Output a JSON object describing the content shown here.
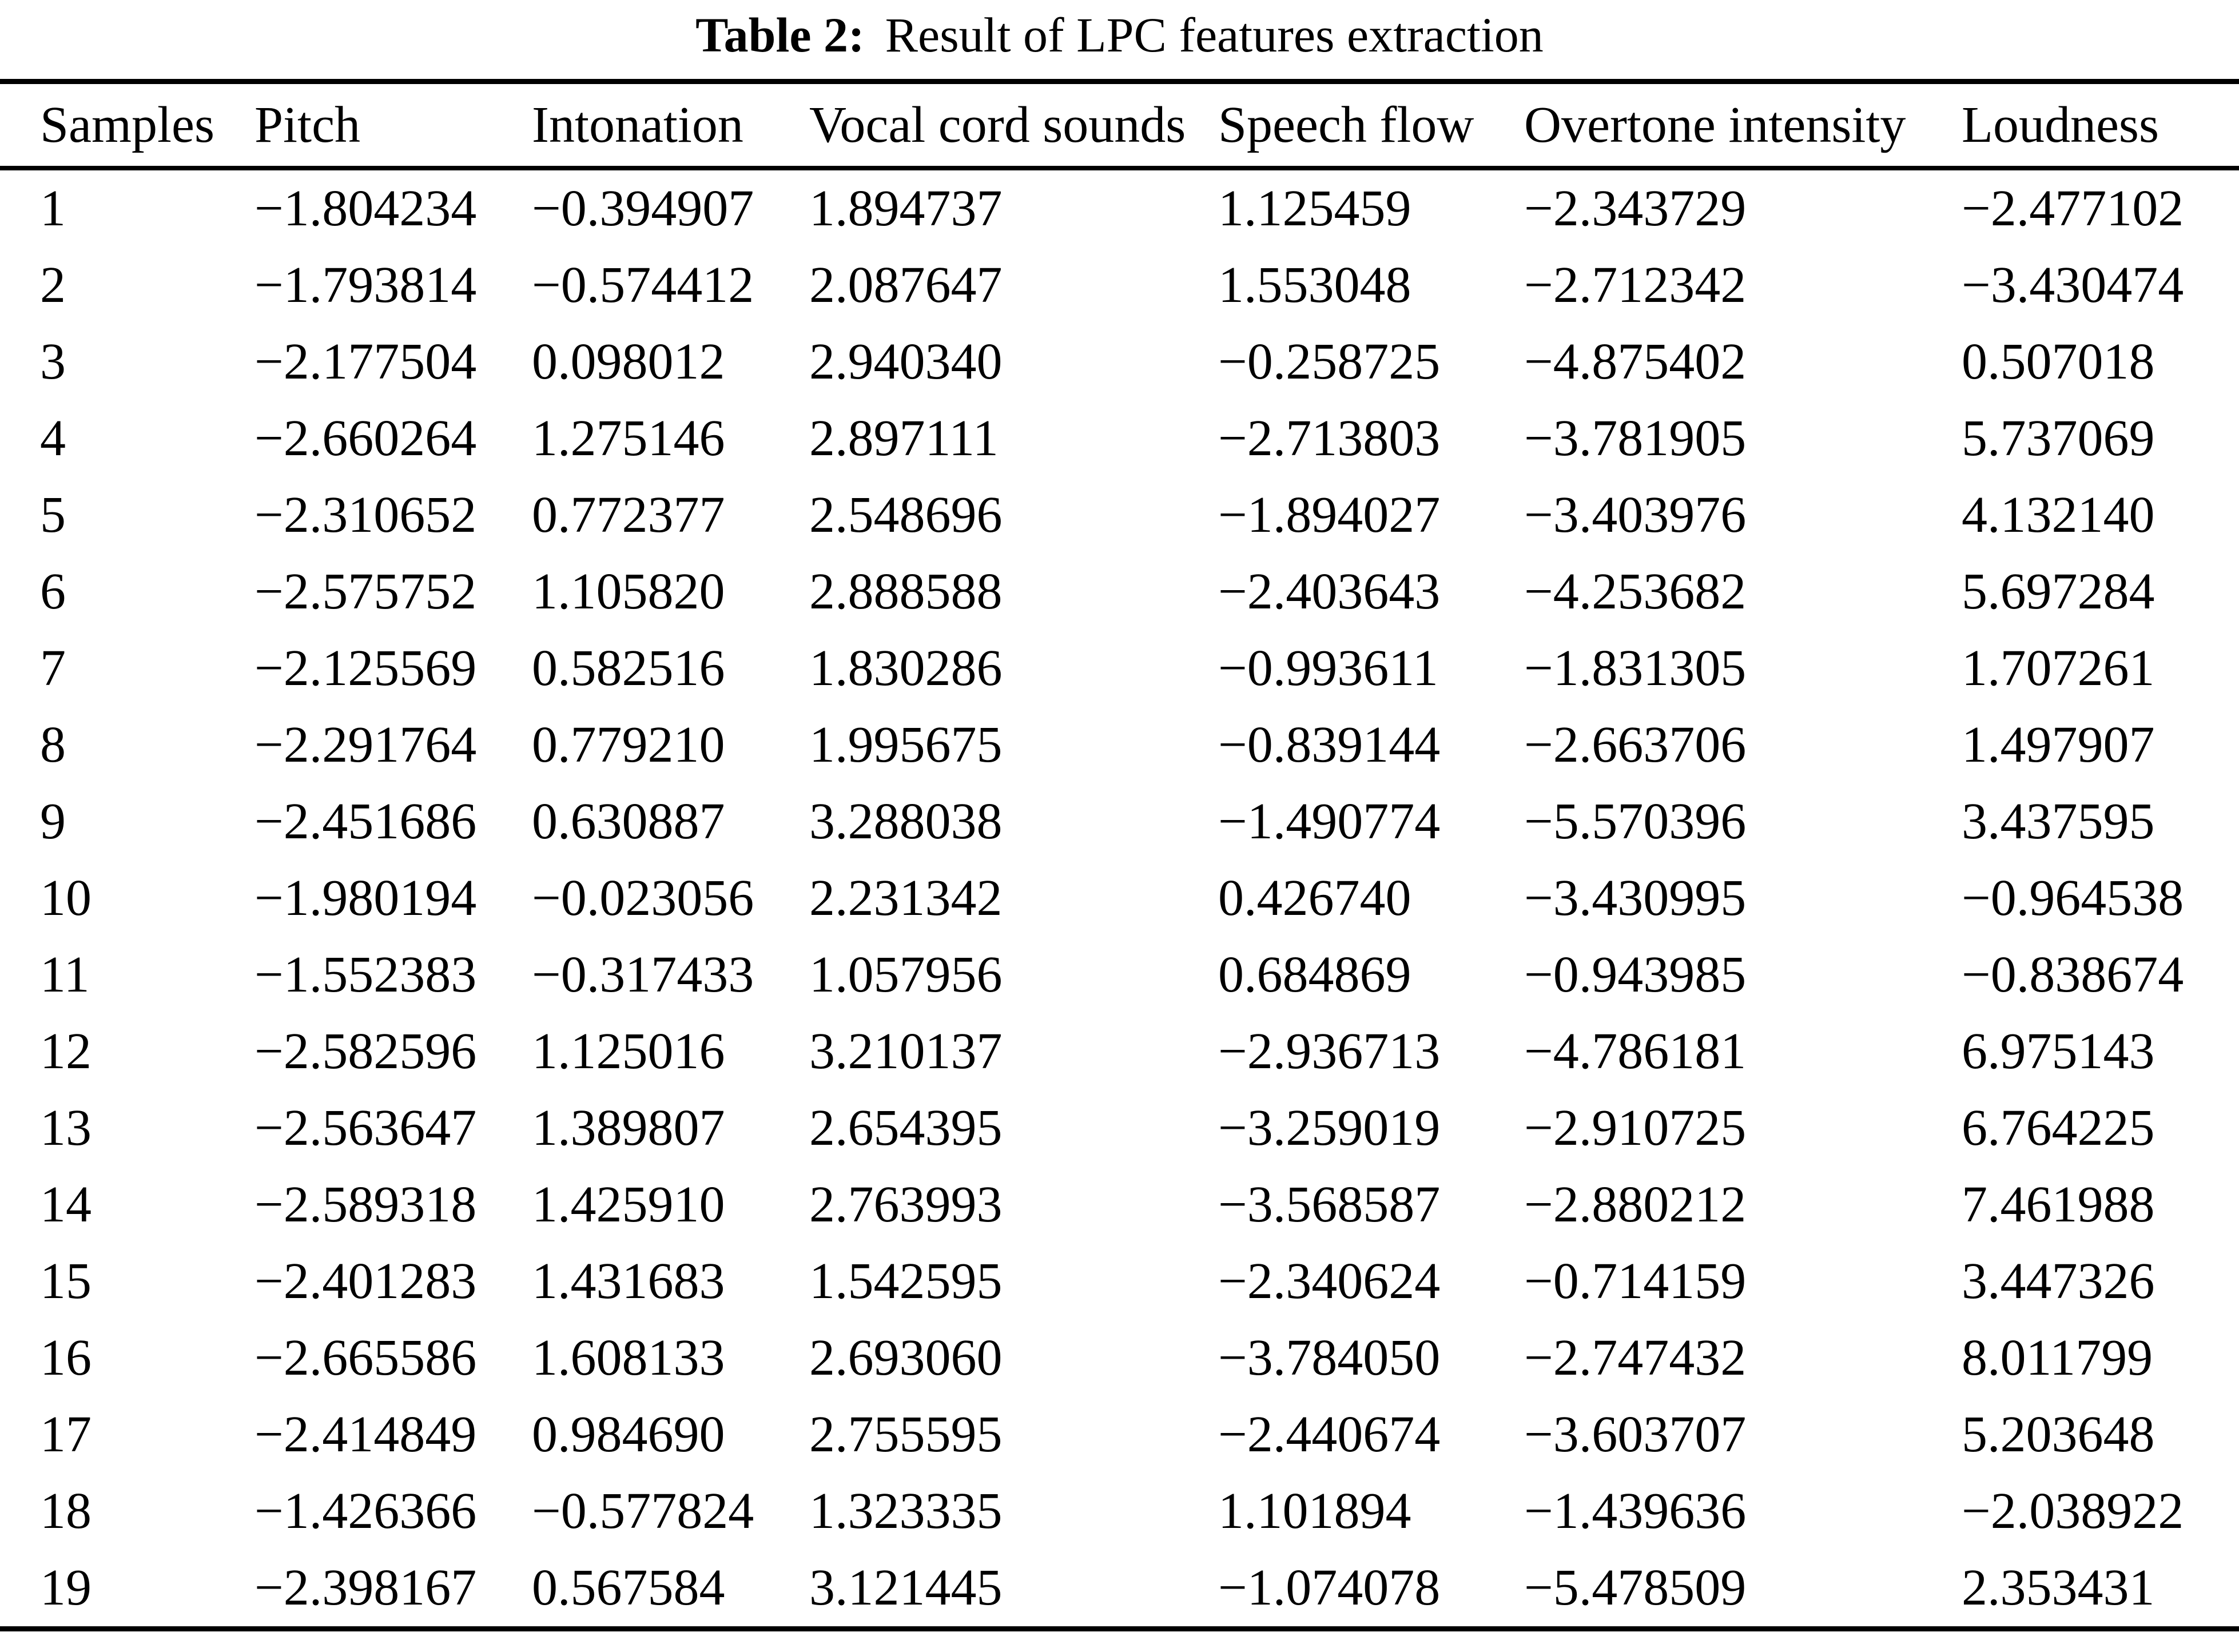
{
  "caption": {
    "label": "Table 2:",
    "title": "Result of LPC features extraction"
  },
  "table": {
    "columns": [
      "Samples",
      "Pitch",
      "Intonation",
      "Vocal cord sounds",
      "Speech flow",
      "Overtone intensity",
      "Loudness"
    ],
    "rows": [
      [
        "1",
        "-1.804234",
        "-0.394907",
        "1.894737",
        "1.125459",
        "-2.343729",
        "-2.477102"
      ],
      [
        "2",
        "-1.793814",
        "-0.574412",
        "2.087647",
        "1.553048",
        "-2.712342",
        "-3.430474"
      ],
      [
        "3",
        "-2.177504",
        "0.098012",
        "2.940340",
        "-0.258725",
        "-4.875402",
        "0.507018"
      ],
      [
        "4",
        "-2.660264",
        "1.275146",
        "2.897111",
        "-2.713803",
        "-3.781905",
        "5.737069"
      ],
      [
        "5",
        "-2.310652",
        "0.772377",
        "2.548696",
        "-1.894027",
        "-3.403976",
        "4.132140"
      ],
      [
        "6",
        "-2.575752",
        "1.105820",
        "2.888588",
        "-2.403643",
        "-4.253682",
        "5.697284"
      ],
      [
        "7",
        "-2.125569",
        "0.582516",
        "1.830286",
        "-0.993611",
        "-1.831305",
        "1.707261"
      ],
      [
        "8",
        "-2.291764",
        "0.779210",
        "1.995675",
        "-0.839144",
        "-2.663706",
        "1.497907"
      ],
      [
        "9",
        "-2.451686",
        "0.630887",
        "3.288038",
        "-1.490774",
        "-5.570396",
        "3.437595"
      ],
      [
        "10",
        "-1.980194",
        "-0.023056",
        "2.231342",
        "0.426740",
        "-3.430995",
        "-0.964538"
      ],
      [
        "11",
        "-1.552383",
        "-0.317433",
        "1.057956",
        "0.684869",
        "-0.943985",
        "-0.838674"
      ],
      [
        "12",
        "-2.582596",
        "1.125016",
        "3.210137",
        "-2.936713",
        "-4.786181",
        "6.975143"
      ],
      [
        "13",
        "-2.563647",
        "1.389807",
        "2.654395",
        "-3.259019",
        "-2.910725",
        "6.764225"
      ],
      [
        "14",
        "-2.589318",
        "1.425910",
        "2.763993",
        "-3.568587",
        "-2.880212",
        "7.461988"
      ],
      [
        "15",
        "-2.401283",
        "1.431683",
        "1.542595",
        "-2.340624",
        "-0.714159",
        "3.447326"
      ],
      [
        "16",
        "-2.665586",
        "1.608133",
        "2.693060",
        "-3.784050",
        "-2.747432",
        "8.011799"
      ],
      [
        "17",
        "-2.414849",
        "0.984690",
        "2.755595",
        "-2.440674",
        "-3.603707",
        "5.203648"
      ],
      [
        "18",
        "-1.426366",
        "-0.577824",
        "1.323335",
        "1.101894",
        "-1.439636",
        "-2.038922"
      ],
      [
        "19",
        "-2.398167",
        "0.567584",
        "3.121445",
        "-1.074078",
        "-5.478509",
        "2.353431"
      ]
    ]
  },
  "colors": {
    "text": "#000000",
    "background": "#ffffff",
    "rule": "#000000"
  }
}
